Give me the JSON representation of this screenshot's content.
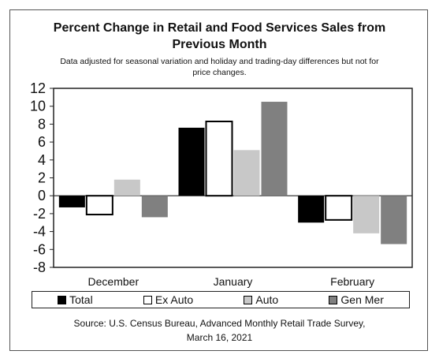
{
  "header": {
    "title_line1": "Percent Change in Retail and Food Services Sales from",
    "title_line2": "Previous Month",
    "subtitle_line1": "Data adjusted for seasonal variation and holiday and trading-day differences but not for",
    "subtitle_line2": "price changes."
  },
  "legend": {
    "items": [
      {
        "label": "Total",
        "color": "#000000"
      },
      {
        "label": "Ex Auto",
        "color": "#ffffff"
      },
      {
        "label": "Auto",
        "color": "#c8c8c8"
      },
      {
        "label": "Gen Mer",
        "color": "#808080"
      }
    ]
  },
  "source": {
    "line1": "Source: U.S. Census Bureau, Advanced Monthly Retail Trade Survey,",
    "line2": "March 16, 2021"
  },
  "chart_data": {
    "type": "bar",
    "title": "Percent Change in Retail and Food Services Sales from Previous Month",
    "categories": [
      "December",
      "January",
      "February"
    ],
    "ylim": [
      -8,
      12
    ],
    "yticks": [
      12,
      10,
      8,
      6,
      4,
      2,
      0,
      -2,
      -4,
      -6,
      -8
    ],
    "ytick_labels": [
      "12",
      "10",
      "8",
      "6",
      "4",
      "2",
      "0",
      "-2",
      "-4",
      "-6",
      "-8"
    ],
    "grid": false,
    "legend_position": "bottom",
    "series": [
      {
        "name": "Total",
        "color": "#000000",
        "values": [
          -1.3,
          7.6,
          -3.0
        ]
      },
      {
        "name": "Ex Auto",
        "color": "#ffffff",
        "values": [
          -2.1,
          8.3,
          -2.7
        ]
      },
      {
        "name": "Auto",
        "color": "#c8c8c8",
        "values": [
          1.8,
          5.1,
          -4.2
        ]
      },
      {
        "name": "Gen Mer",
        "color": "#808080",
        "values": [
          -2.4,
          10.5,
          -5.4
        ]
      }
    ]
  }
}
